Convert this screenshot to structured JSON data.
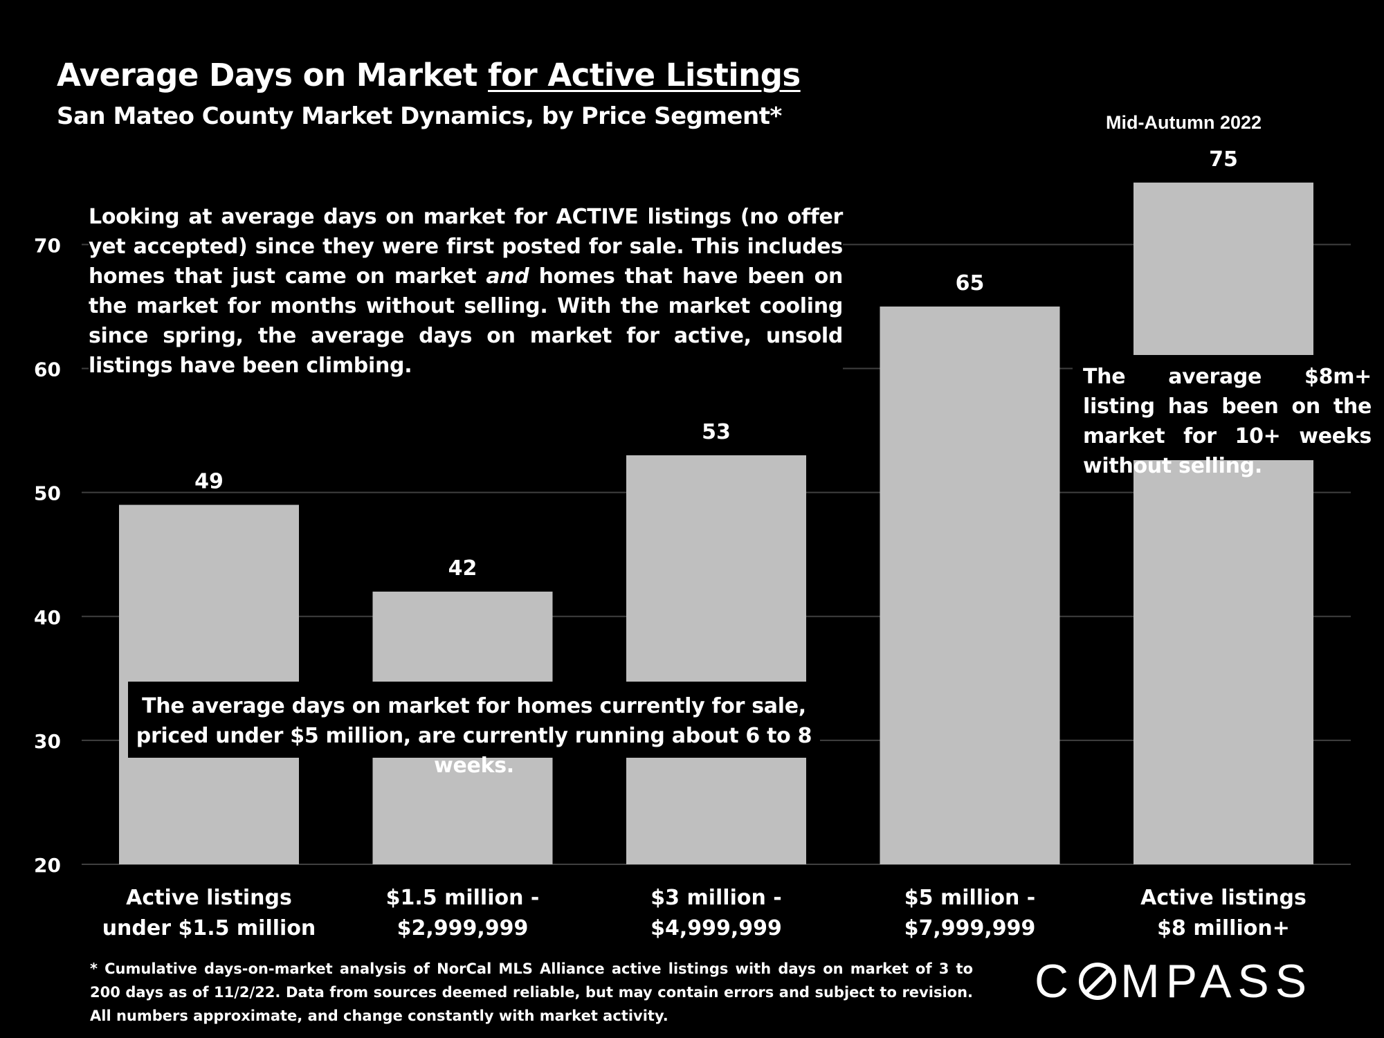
{
  "header": {
    "title_main": "Average Days on Market ",
    "title_underlined": "for Active Listings",
    "subtitle": "San Mateo County Market Dynamics, by Price Segment*",
    "period": "Mid-Autumn 2022"
  },
  "notes": {
    "top_part1": "Looking at average days on market for ACTIVE listings (no offer yet accepted) since they were first posted for sale. This includes homes that just came on market ",
    "top_em": "and",
    "top_part2": " homes that have been on the market for months without selling. With the market cooling since spring, the average days on market for active, unsold listings have been climbing.",
    "middle": "The average days on market for homes currently for sale, priced under $5 million, are currently running about 6 to 8 weeks.",
    "right": "The average $8m+ listing has been on the market for 10+ weeks without selling."
  },
  "footnote": "* Cumulative days-on-market analysis of NorCal MLS Alliance active listings with days on market of 3 to 200 days as of 11/2/22. Data from sources deemed reliable, but may contain errors and subject to revision. All numbers approximate, and change constantly with market activity.",
  "logo": {
    "before": "C",
    "after": "MPASS"
  },
  "colors": {
    "background": "#000000",
    "bar": "#bfbfbf",
    "gridline": "#404040",
    "text": "#ffffff"
  },
  "chart_data": {
    "type": "bar",
    "categories": [
      [
        "Active listings",
        "under $1.5 million"
      ],
      [
        "$1.5 million -",
        "$2,999,999"
      ],
      [
        "$3 million -",
        "$4,999,999"
      ],
      [
        "$5 million -",
        "$7,999,999"
      ],
      [
        "Active listings",
        "$8 million+"
      ]
    ],
    "values": [
      49,
      42,
      53,
      65,
      75
    ],
    "data_labels": [
      "49",
      "42",
      "53",
      "65",
      "75"
    ],
    "yticks": [
      20,
      30,
      40,
      50,
      60,
      70
    ],
    "ylim": [
      20,
      77
    ],
    "grid": true,
    "legend": "none"
  }
}
